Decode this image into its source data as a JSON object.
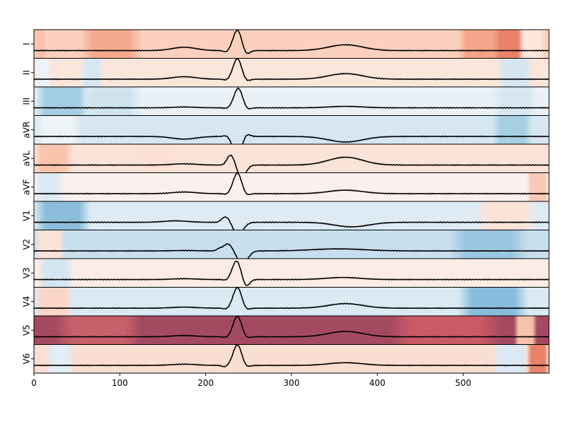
{
  "chart_data": {
    "type": "line",
    "title": "",
    "xlabel": "",
    "ylabel": "",
    "xlim": [
      0,
      600
    ],
    "x_ticks": [
      0,
      100,
      200,
      300,
      400,
      500
    ],
    "grid": false,
    "legend": "none",
    "background": "per-row heatmap, RdBu_r colormap (red = high, blue = low)",
    "trace_color": "#000000",
    "leads": [
      {
        "name": "I",
        "base_color": "#fbd0bf",
        "heat_bands": [
          [
            0,
            8,
            "#f9c2ab"
          ],
          [
            60,
            120,
            "#f5aa8d"
          ],
          [
            500,
            540,
            "#f4a488"
          ],
          [
            540,
            570,
            "#e8836a"
          ],
          [
            570,
            590,
            "#fde6dc"
          ]
        ],
        "ecg": {
          "p": [
            175,
            0.16,
            14
          ],
          "q": [
            224,
            -0.08,
            3
          ],
          "r": [
            237,
            1.0,
            5
          ],
          "s": [
            247,
            -0.22,
            4
          ],
          "t": [
            363,
            0.28,
            20
          ]
        }
      },
      {
        "name": "II",
        "base_color": "#fbe6dc",
        "heat_bands": [
          [
            0,
            14,
            "#eef3f7"
          ],
          [
            60,
            75,
            "#d8e8f2"
          ],
          [
            545,
            575,
            "#d5e6f1"
          ]
        ],
        "ecg": {
          "p": [
            175,
            0.12,
            14
          ],
          "q": [
            224,
            -0.05,
            3
          ],
          "r": [
            237,
            1.0,
            5
          ],
          "s": [
            247,
            -0.12,
            4
          ],
          "t": [
            363,
            0.27,
            20
          ]
        }
      },
      {
        "name": "III",
        "base_color": "#e9f1f7",
        "heat_bands": [
          [
            0,
            60,
            "#a3cde3"
          ],
          [
            60,
            120,
            "#cfe3ef"
          ],
          [
            540,
            580,
            "#d8e8f2"
          ]
        ],
        "ecg": {
          "p": [
            175,
            0.04,
            14
          ],
          "q": [
            224,
            -0.03,
            3
          ],
          "r": [
            238,
            0.95,
            5
          ],
          "s": [
            248,
            -0.1,
            4
          ],
          "t": [
            363,
            0.07,
            20
          ]
        }
      },
      {
        "name": "aVR",
        "base_color": "#d6e7f2",
        "heat_bands": [
          [
            0,
            50,
            "#eef3f7"
          ],
          [
            540,
            575,
            "#a6cfe4"
          ]
        ],
        "ecg": {
          "p": [
            175,
            -0.13,
            14
          ],
          "q": [
            224,
            0.05,
            3
          ],
          "r": [
            237,
            -1.0,
            5
          ],
          "s": [
            247,
            0.15,
            4
          ],
          "t": [
            363,
            -0.27,
            20
          ]
        }
      },
      {
        "name": "aVL",
        "base_color": "#fbe3d8",
        "heat_bands": [
          [
            0,
            40,
            "#f9c3ac"
          ],
          [
            120,
            160,
            "#fde0d4"
          ]
        ],
        "ecg": {
          "p": [
            175,
            0.06,
            14
          ],
          "q": [
            226,
            0.1,
            3
          ],
          "r": [
            230,
            0.45,
            4
          ],
          "s": [
            242,
            -0.6,
            5
          ],
          "t": [
            363,
            0.38,
            20
          ]
        }
      },
      {
        "name": "aVF",
        "base_color": "#faf1ee",
        "heat_bands": [
          [
            0,
            30,
            "#dceaf3"
          ],
          [
            580,
            600,
            "#f8c8b4"
          ]
        ],
        "ecg": {
          "p": [
            175,
            0.08,
            14
          ],
          "q": [
            224,
            -0.04,
            3
          ],
          "r": [
            237,
            1.0,
            5
          ],
          "s": [
            247,
            -0.1,
            4
          ],
          "t": [
            363,
            0.17,
            20
          ]
        }
      },
      {
        "name": "V1",
        "base_color": "#deebf4",
        "heat_bands": [
          [
            0,
            60,
            "#8cbedb"
          ],
          [
            520,
            580,
            "#fbe3d8"
          ]
        ],
        "ecg": {
          "p": [
            165,
            0.07,
            14
          ],
          "q": [
            220,
            0.1,
            3
          ],
          "r": [
            225,
            0.25,
            4
          ],
          "s": [
            238,
            -0.58,
            6
          ],
          "t": [
            370,
            -0.22,
            20
          ]
        }
      },
      {
        "name": "V2",
        "base_color": "#c8dfed",
        "heat_bands": [
          [
            0,
            30,
            "#fbe3d8"
          ],
          [
            490,
            570,
            "#9cc7e1"
          ]
        ],
        "ecg": {
          "p": [
            175,
            0.02,
            14
          ],
          "q": [
            216,
            0.1,
            3
          ],
          "r": [
            226,
            0.35,
            5
          ],
          "s": [
            243,
            -0.65,
            6
          ],
          "t": [
            355,
            0.1,
            30
          ]
        }
      },
      {
        "name": "V3",
        "base_color": "#fbece5",
        "heat_bands": [
          [
            10,
            40,
            "#d4e6f1"
          ]
        ],
        "ecg": {
          "p": [
            175,
            0.04,
            14
          ],
          "q": [
            224,
            -0.05,
            3
          ],
          "r": [
            236,
            0.9,
            5
          ],
          "s": [
            247,
            -0.35,
            4
          ],
          "t": [
            360,
            0.1,
            20
          ]
        }
      },
      {
        "name": "V4",
        "base_color": "#dbe9f3",
        "heat_bands": [
          [
            0,
            40,
            "#fbd6c6"
          ],
          [
            500,
            570,
            "#88bcdc"
          ]
        ],
        "ecg": {
          "p": [
            175,
            0.05,
            14
          ],
          "q": [
            224,
            -0.05,
            3
          ],
          "r": [
            237,
            1.0,
            5
          ],
          "s": [
            247,
            -0.1,
            4
          ],
          "t": [
            363,
            0.22,
            20
          ]
        }
      },
      {
        "name": "V5",
        "base_color": "#a34a61",
        "heat_bands": [
          [
            30,
            120,
            "#c7606b"
          ],
          [
            420,
            540,
            "#cc5a66"
          ],
          [
            565,
            580,
            "#f6c2aa"
          ]
        ],
        "ecg": {
          "p": [
            175,
            0.06,
            14
          ],
          "q": [
            224,
            -0.04,
            3
          ],
          "r": [
            237,
            1.0,
            5
          ],
          "s": [
            247,
            -0.08,
            4
          ],
          "t": [
            363,
            0.26,
            20
          ]
        }
      },
      {
        "name": "V6",
        "base_color": "#fbded2",
        "heat_bands": [
          [
            20,
            40,
            "#e2edf5"
          ],
          [
            540,
            570,
            "#dae9f3"
          ],
          [
            580,
            600,
            "#e8836a"
          ]
        ],
        "ecg": {
          "p": [
            175,
            0.06,
            14
          ],
          "q": [
            222,
            -0.07,
            3
          ],
          "r": [
            237,
            1.0,
            5
          ],
          "s": [
            247,
            -0.1,
            4
          ],
          "t": [
            363,
            0.13,
            20
          ]
        }
      }
    ]
  }
}
